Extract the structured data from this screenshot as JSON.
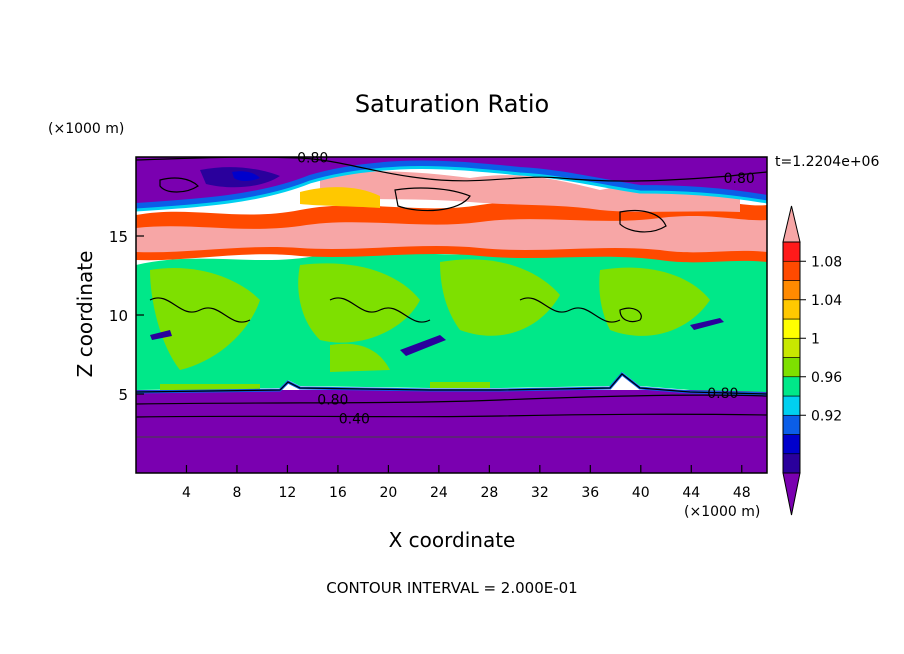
{
  "chart_data": {
    "type": "heatmap",
    "title": "Saturation Ratio",
    "xlabel": "X coordinate",
    "ylabel": "Z coordinate",
    "x_units": "(×1000 m)",
    "y_units": "(×1000 m)",
    "time_label": "t=1.2204e+06",
    "footer": "CONTOUR INTERVAL = 2.000E-01",
    "xlim": [
      0,
      50
    ],
    "ylim": [
      0,
      20
    ],
    "x_ticks": [
      4,
      8,
      12,
      16,
      20,
      24,
      28,
      32,
      36,
      40,
      44,
      48
    ],
    "y_ticks": [
      5,
      10,
      15
    ],
    "colorbar": {
      "tick_labels": [
        "1.08",
        "1.04",
        "1",
        "0.96",
        "0.92"
      ],
      "bins": [
        {
          "color": "#7a00b0"
        },
        {
          "color": "#2a009c"
        },
        {
          "color": "#0000cc"
        },
        {
          "color": "#0b5ee8"
        },
        {
          "color": "#00d0f0"
        },
        {
          "color": "#00e889"
        },
        {
          "color": "#7ee000"
        },
        {
          "color": "#c8e800"
        },
        {
          "color": "#ffff00"
        },
        {
          "color": "#ffc800"
        },
        {
          "color": "#ff8a00"
        },
        {
          "color": "#ff4a00"
        },
        {
          "color": "#ff1a1a"
        },
        {
          "color": "#f7a6a6"
        }
      ]
    },
    "contour_labels": [
      {
        "text": "0.80",
        "x": 14.0,
        "y": 19.9
      },
      {
        "text": "0.80",
        "x": 47.8,
        "y": 18.6
      },
      {
        "text": "0.80",
        "x": 15.6,
        "y": 4.6
      },
      {
        "text": "0.40",
        "x": 17.3,
        "y": 3.4
      },
      {
        "text": "0.80",
        "x": 46.5,
        "y": 5.0
      }
    ],
    "regions": {
      "base_layer_value": "< 0.92",
      "mid_layer_value": "≈ 1.0",
      "upper_layer_value": "> 1.08",
      "top_layer_value": "< 0.92"
    }
  }
}
